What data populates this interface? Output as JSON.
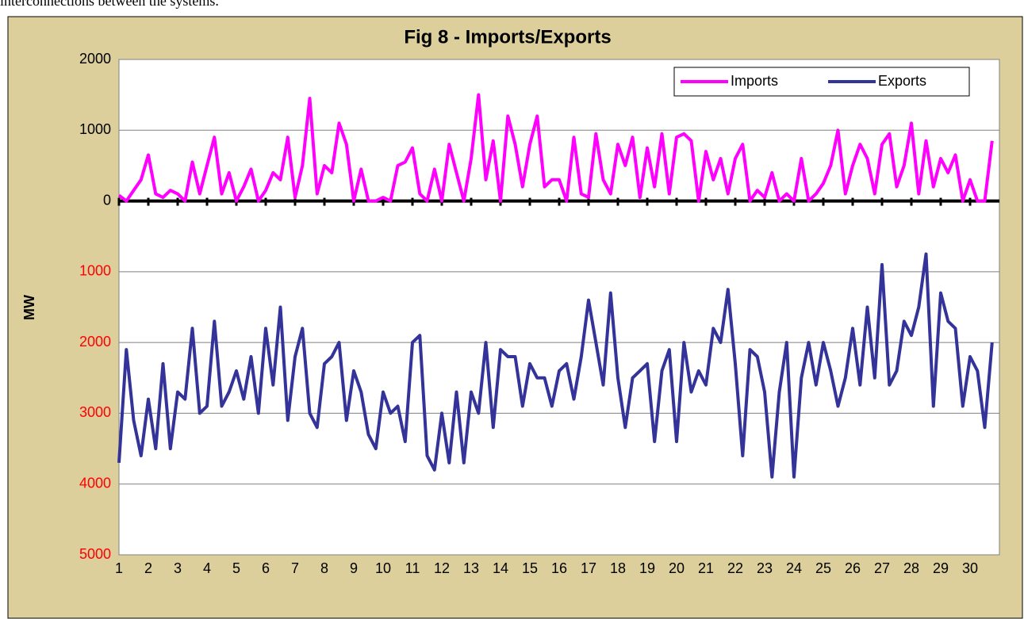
{
  "intro_text": "interconnections between the systems.",
  "chart_data": {
    "type": "line",
    "title": "Fig 8 - Imports/Exports",
    "ylabel": "MW",
    "x": [
      1,
      1.25,
      1.5,
      1.75,
      2,
      2.25,
      2.5,
      2.75,
      3,
      3.25,
      3.5,
      3.75,
      4,
      4.25,
      4.5,
      4.75,
      5,
      5.25,
      5.5,
      5.75,
      6,
      6.25,
      6.5,
      6.75,
      7,
      7.25,
      7.5,
      7.75,
      8,
      8.25,
      8.5,
      8.75,
      9,
      9.25,
      9.5,
      9.75,
      10,
      10.25,
      10.5,
      10.75,
      11,
      11.25,
      11.5,
      11.75,
      12,
      12.25,
      12.5,
      12.75,
      13,
      13.25,
      13.5,
      13.75,
      14,
      14.25,
      14.5,
      14.75,
      15,
      15.25,
      15.5,
      15.75,
      16,
      16.25,
      16.5,
      16.75,
      17,
      17.25,
      17.5,
      17.75,
      18,
      18.25,
      18.5,
      18.75,
      19,
      19.25,
      19.5,
      19.75,
      20,
      20.25,
      20.5,
      20.75,
      21,
      21.25,
      21.5,
      21.75,
      22,
      22.25,
      22.5,
      22.75,
      23,
      23.25,
      23.5,
      23.75,
      24,
      24.25,
      24.5,
      24.75,
      25,
      25.25,
      25.5,
      25.75,
      26,
      26.25,
      26.5,
      26.75,
      27,
      27.25,
      27.5,
      27.75,
      28,
      28.25,
      28.5,
      28.75,
      29,
      29.25,
      29.5,
      29.75,
      30,
      30.25,
      30.5,
      30.75
    ],
    "series": [
      {
        "name": "Imports",
        "color": "#ff00ff",
        "values": [
          80,
          0,
          150,
          300,
          650,
          100,
          50,
          150,
          100,
          0,
          550,
          100,
          500,
          900,
          100,
          400,
          0,
          200,
          450,
          0,
          150,
          400,
          300,
          900,
          50,
          500,
          1450,
          100,
          500,
          400,
          1100,
          800,
          0,
          450,
          0,
          0,
          50,
          0,
          500,
          550,
          750,
          100,
          0,
          450,
          0,
          800,
          400,
          0,
          600,
          1500,
          300,
          850,
          0,
          1200,
          800,
          200,
          800,
          1200,
          200,
          300,
          300,
          0,
          900,
          100,
          50,
          950,
          300,
          100,
          800,
          500,
          900,
          50,
          750,
          200,
          950,
          100,
          900,
          950,
          850,
          0,
          700,
          300,
          600,
          100,
          600,
          800,
          0,
          150,
          50,
          400,
          0,
          100,
          0,
          600,
          0,
          100,
          250,
          500,
          1000,
          100,
          500,
          800,
          600,
          100,
          800,
          950,
          200,
          500,
          1100,
          100,
          850,
          200,
          600,
          400,
          650,
          0,
          300,
          0,
          0,
          850
        ]
      },
      {
        "name": "Exports",
        "color": "#333399",
        "values": [
          -3700,
          -2100,
          -3100,
          -3600,
          -2800,
          -3500,
          -2300,
          -3500,
          -2700,
          -2800,
          -1800,
          -3000,
          -2900,
          -1700,
          -2900,
          -2700,
          -2400,
          -2800,
          -2200,
          -3000,
          -1800,
          -2600,
          -1500,
          -3100,
          -2200,
          -1800,
          -3000,
          -3200,
          -2300,
          -2200,
          -2000,
          -3100,
          -2400,
          -2700,
          -3300,
          -3500,
          -2700,
          -3000,
          -2900,
          -3400,
          -2000,
          -1900,
          -3600,
          -3800,
          -3000,
          -3700,
          -2700,
          -3700,
          -2700,
          -3000,
          -2000,
          -3200,
          -2100,
          -2200,
          -2200,
          -2900,
          -2300,
          -2500,
          -2500,
          -2900,
          -2400,
          -2300,
          -2800,
          -2200,
          -1400,
          -2000,
          -2600,
          -1300,
          -2500,
          -3200,
          -2500,
          -2400,
          -2300,
          -3400,
          -2400,
          -2100,
          -3400,
          -2000,
          -2700,
          -2400,
          -2600,
          -1800,
          -2000,
          -1250,
          -2300,
          -3600,
          -2100,
          -2200,
          -2700,
          -3900,
          -2700,
          -2000,
          -3900,
          -2500,
          -2000,
          -2600,
          -2000,
          -2400,
          -2900,
          -2500,
          -1800,
          -2600,
          -1500,
          -2500,
          -900,
          -2600,
          -2400,
          -1700,
          -1900,
          -1500,
          -750,
          -2900,
          -1300,
          -1700,
          -1800,
          -2900,
          -2200,
          -2400,
          -3200,
          -2000
        ]
      }
    ],
    "xlim": [
      1,
      31
    ],
    "xticks": [
      1,
      2,
      3,
      4,
      5,
      6,
      7,
      8,
      9,
      10,
      11,
      12,
      13,
      14,
      15,
      16,
      17,
      18,
      19,
      20,
      21,
      22,
      23,
      24,
      25,
      26,
      27,
      28,
      29,
      30
    ],
    "ylim": [
      -5000,
      2000
    ],
    "yticks": [
      2000,
      1000,
      0,
      {
        "value": -1000,
        "label": "1000"
      },
      {
        "value": -2000,
        "label": "2000"
      },
      {
        "value": -3000,
        "label": "3000"
      },
      {
        "value": -4000,
        "label": "4000"
      },
      {
        "value": -5000,
        "label": "5000"
      }
    ],
    "tick_color": "#000000",
    "negative_tick_color": "#ff0000",
    "grid": true,
    "legend": "upper right"
  }
}
